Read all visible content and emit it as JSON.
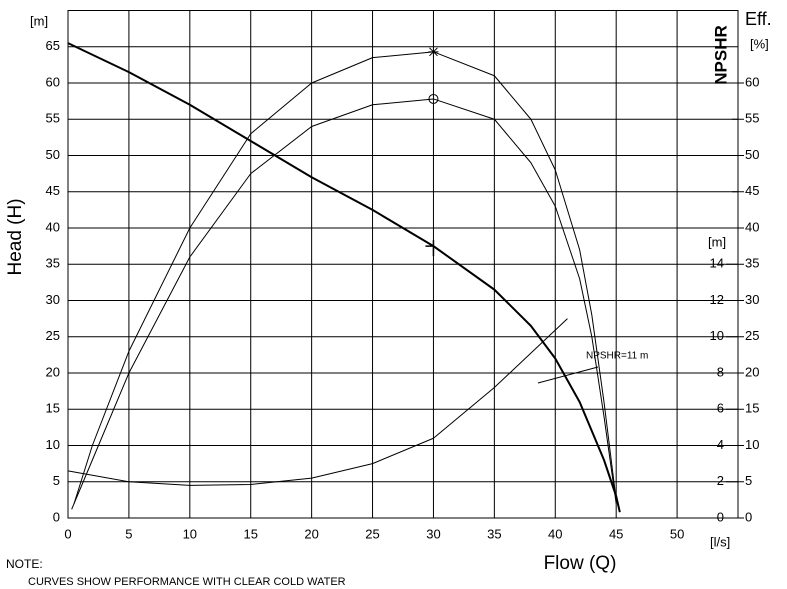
{
  "chart_data": {
    "type": "line",
    "y_label_unit": "[m]",
    "y_label": "Head (H)",
    "x_label": "Flow (Q)",
    "x_unit": "[l/s]",
    "y2_label": "Eff.",
    "y2_unit": "[%]",
    "y3_label": "NPSHR",
    "y3_unit": "[m]",
    "annotation": "NPSHR=11 m",
    "xlim": [
      0,
      55
    ],
    "xticks": [
      0,
      5,
      10,
      15,
      20,
      25,
      30,
      35,
      40,
      45,
      50
    ],
    "ylim": [
      0,
      70
    ],
    "yticks": [
      0,
      5,
      10,
      15,
      20,
      25,
      30,
      35,
      40,
      45,
      50,
      55,
      60,
      65
    ],
    "y2lim": [
      0,
      70
    ],
    "y2ticks": [
      0,
      5,
      10,
      15,
      20,
      25,
      30,
      35,
      40,
      45,
      50,
      55,
      60
    ],
    "y3lim": [
      0,
      28
    ],
    "y3ticks": [
      0,
      2,
      4,
      6,
      8,
      10,
      12,
      14
    ],
    "grid": true,
    "duty_flow": 30,
    "series": [
      {
        "color": "#000000",
        "width": 2,
        "marker": "tick",
        "axis": "y",
        "x": [
          0,
          5,
          10,
          15,
          20,
          25,
          30,
          35,
          38,
          40,
          42,
          44,
          45,
          45.3
        ],
        "values": [
          65.5,
          61.5,
          57,
          52,
          47,
          42.5,
          37.5,
          31.5,
          26.5,
          22,
          16,
          8,
          3,
          0.8
        ]
      },
      {
        "color": "#000000",
        "width": 1,
        "marker": "star",
        "axis": "y2",
        "x": [
          0.5,
          2,
          5,
          10,
          15,
          20,
          25,
          30,
          35,
          38,
          40,
          42,
          43,
          44,
          45
        ],
        "values": [
          2,
          10,
          23,
          40,
          53,
          60,
          63.5,
          64.3,
          61,
          55,
          48,
          37,
          28,
          16,
          2.5
        ]
      },
      {
        "color": "#000000",
        "width": 1,
        "marker": "circle",
        "axis": "y2",
        "x": [
          0.3,
          2,
          5,
          10,
          15,
          20,
          25,
          30,
          35,
          38,
          40,
          42,
          43,
          44,
          45
        ],
        "values": [
          1.2,
          8,
          20,
          36,
          47.5,
          54,
          57,
          57.8,
          55,
          49,
          43,
          33,
          25,
          14,
          2
        ]
      },
      {
        "color": "#000000",
        "width": 1,
        "marker": "none",
        "axis": "y3",
        "x": [
          0,
          5,
          10,
          15,
          20,
          25,
          30,
          35,
          41
        ],
        "values": [
          2.6,
          2.0,
          1.8,
          1.85,
          2.2,
          3.0,
          4.4,
          7.2,
          11
        ]
      }
    ]
  },
  "note": {
    "title": "NOTE:",
    "text": "CURVES SHOW PERFORMANCE WITH CLEAR COLD WATER"
  }
}
